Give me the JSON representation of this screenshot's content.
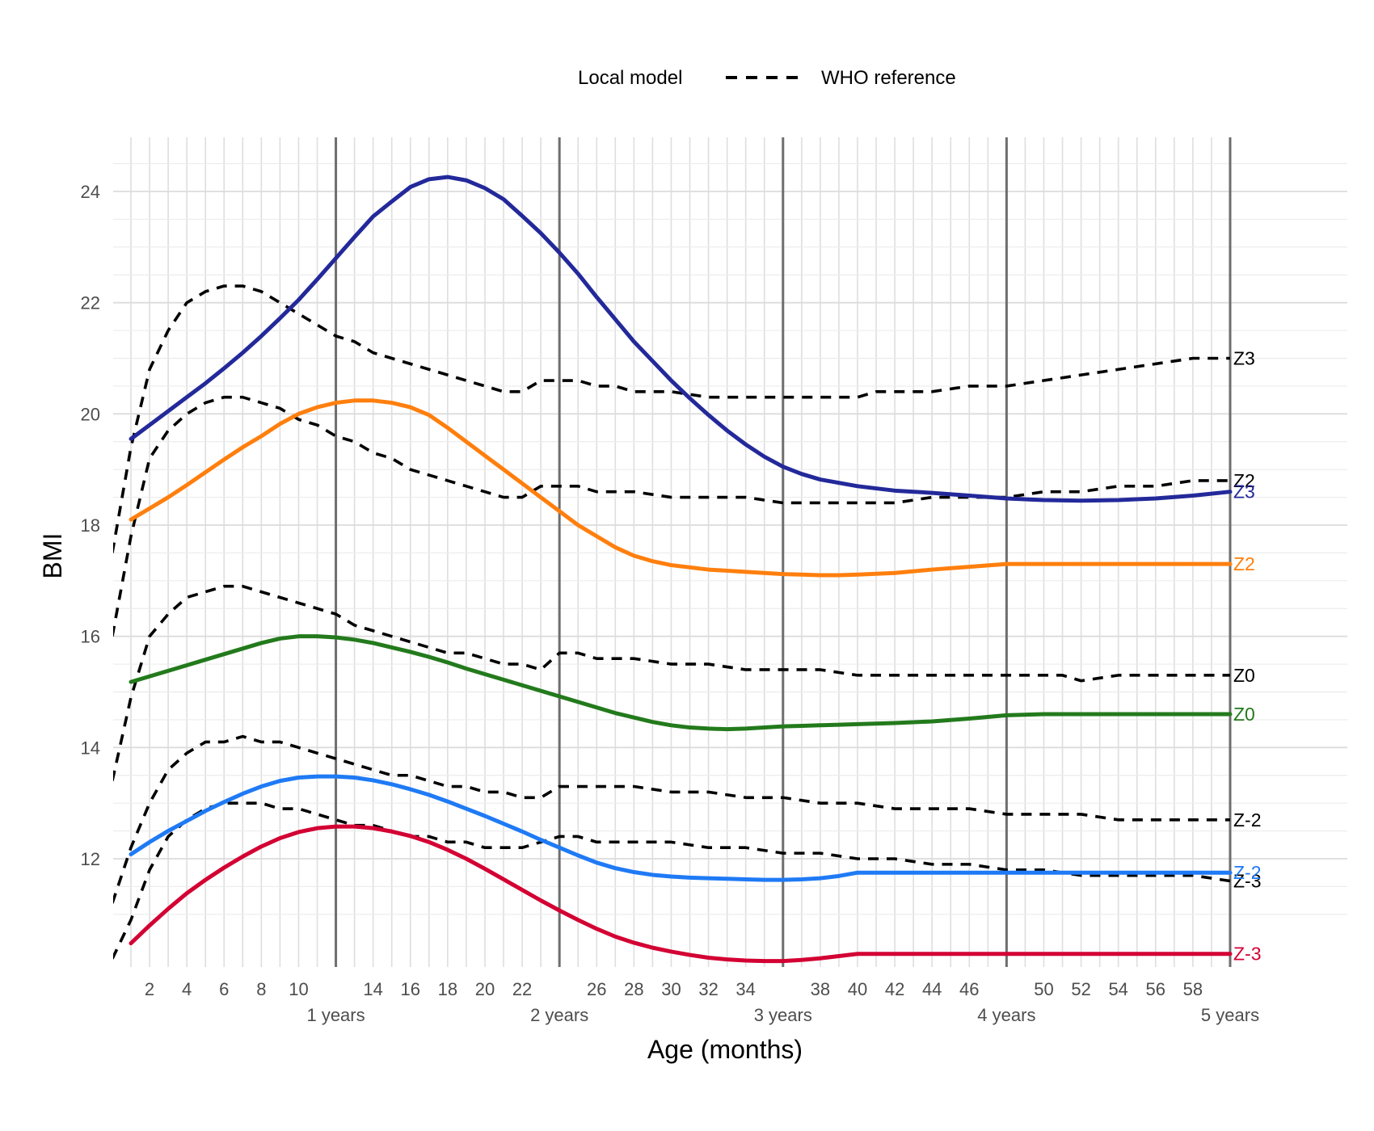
{
  "chart_data": {
    "type": "line",
    "title": "",
    "xlabel": "Age (months)",
    "ylabel": "BMI",
    "xlim": [
      0,
      60
    ],
    "ylim": [
      10.2,
      24.8
    ],
    "grid": true,
    "legend_position": "top",
    "legend": [
      {
        "label": "Local model",
        "style": "solid"
      },
      {
        "label": "WHO reference",
        "style": "dashed"
      }
    ],
    "x_ticks": [
      2,
      4,
      6,
      8,
      10,
      14,
      16,
      18,
      20,
      22,
      26,
      28,
      30,
      32,
      34,
      38,
      40,
      42,
      44,
      46,
      50,
      52,
      54,
      56,
      58
    ],
    "x_tick_labels": [
      "2",
      "4",
      "6",
      "8",
      "10",
      "14",
      "16",
      "18",
      "20",
      "22",
      "26",
      "28",
      "30",
      "32",
      "34",
      "38",
      "40",
      "42",
      "44",
      "46",
      "50",
      "52",
      "54",
      "56",
      "58"
    ],
    "year_ticks": [
      12,
      24,
      36,
      48,
      60
    ],
    "year_labels": [
      "1 years",
      "2 years",
      "3 years",
      "4 years",
      "5 years"
    ],
    "y_ticks": [
      12,
      14,
      16,
      18,
      20,
      22,
      24
    ],
    "y_tick_labels": [
      "12",
      "14",
      "16",
      "18",
      "20",
      "22",
      "24"
    ],
    "local_series": [
      {
        "name": "Z3",
        "color": "#23299a",
        "x": [
          1,
          2,
          3,
          4,
          5,
          6,
          7,
          8,
          9,
          10,
          11,
          12,
          13,
          14,
          15,
          16,
          17,
          18,
          19,
          20,
          21,
          22,
          23,
          24,
          25,
          26,
          27,
          28,
          29,
          30,
          31,
          32,
          33,
          34,
          35,
          36,
          37,
          38,
          39,
          40,
          41,
          42,
          44,
          46,
          48,
          50,
          52,
          54,
          56,
          58,
          60
        ],
        "y": [
          19.55,
          19.8,
          20.05,
          20.3,
          20.55,
          20.82,
          21.1,
          21.4,
          21.72,
          22.05,
          22.42,
          22.8,
          23.18,
          23.55,
          23.82,
          24.08,
          24.22,
          24.26,
          24.2,
          24.06,
          23.86,
          23.56,
          23.25,
          22.9,
          22.52,
          22.1,
          21.7,
          21.3,
          20.95,
          20.6,
          20.28,
          19.98,
          19.7,
          19.45,
          19.23,
          19.05,
          18.92,
          18.82,
          18.76,
          18.7,
          18.66,
          18.62,
          18.58,
          18.53,
          18.48,
          18.45,
          18.44,
          18.45,
          18.48,
          18.53,
          18.6
        ]
      },
      {
        "name": "Z2",
        "color": "#ff7f0e",
        "x": [
          1,
          2,
          3,
          4,
          5,
          6,
          7,
          8,
          9,
          10,
          11,
          12,
          13,
          14,
          15,
          16,
          17,
          18,
          19,
          20,
          21,
          22,
          23,
          24,
          25,
          26,
          27,
          28,
          29,
          30,
          31,
          32,
          33,
          34,
          35,
          36,
          37,
          38,
          39,
          40,
          42,
          44,
          46,
          48,
          50,
          52,
          54,
          56,
          58,
          60
        ],
        "y": [
          18.1,
          18.3,
          18.5,
          18.72,
          18.95,
          19.18,
          19.4,
          19.6,
          19.82,
          20.0,
          20.12,
          20.2,
          20.24,
          20.24,
          20.2,
          20.12,
          19.98,
          19.75,
          19.5,
          19.25,
          19.0,
          18.75,
          18.5,
          18.25,
          18.0,
          17.8,
          17.6,
          17.45,
          17.35,
          17.28,
          17.24,
          17.2,
          17.18,
          17.16,
          17.14,
          17.12,
          17.11,
          17.1,
          17.1,
          17.11,
          17.14,
          17.2,
          17.25,
          17.3,
          17.3,
          17.3,
          17.3,
          17.3,
          17.3,
          17.3
        ]
      },
      {
        "name": "Z0",
        "color": "#237a1c",
        "x": [
          1,
          2,
          3,
          4,
          5,
          6,
          7,
          8,
          9,
          10,
          11,
          12,
          13,
          14,
          15,
          16,
          17,
          18,
          19,
          20,
          21,
          22,
          23,
          24,
          25,
          26,
          27,
          28,
          29,
          30,
          31,
          32,
          33,
          34,
          35,
          36,
          37,
          38,
          39,
          40,
          42,
          44,
          46,
          48,
          50,
          52,
          54,
          56,
          58,
          60
        ],
        "y": [
          15.18,
          15.28,
          15.38,
          15.48,
          15.58,
          15.68,
          15.78,
          15.88,
          15.96,
          16.0,
          16.0,
          15.98,
          15.94,
          15.88,
          15.8,
          15.72,
          15.63,
          15.53,
          15.42,
          15.32,
          15.22,
          15.12,
          15.02,
          14.92,
          14.82,
          14.72,
          14.62,
          14.54,
          14.46,
          14.4,
          14.36,
          14.34,
          14.33,
          14.34,
          14.36,
          14.38,
          14.39,
          14.4,
          14.41,
          14.42,
          14.44,
          14.47,
          14.52,
          14.58,
          14.6,
          14.6,
          14.6,
          14.6,
          14.6,
          14.6
        ]
      },
      {
        "name": "Z-2",
        "color": "#1f7af5",
        "x": [
          1,
          2,
          3,
          4,
          5,
          6,
          7,
          8,
          9,
          10,
          11,
          12,
          13,
          14,
          15,
          16,
          17,
          18,
          19,
          20,
          21,
          22,
          23,
          24,
          25,
          26,
          27,
          28,
          29,
          30,
          31,
          32,
          33,
          34,
          35,
          36,
          37,
          38,
          39,
          40,
          42,
          44,
          46,
          48,
          50,
          52,
          54,
          56,
          58,
          60
        ],
        "y": [
          12.08,
          12.3,
          12.5,
          12.68,
          12.86,
          13.02,
          13.17,
          13.3,
          13.4,
          13.46,
          13.48,
          13.48,
          13.46,
          13.41,
          13.34,
          13.25,
          13.15,
          13.03,
          12.9,
          12.77,
          12.63,
          12.49,
          12.34,
          12.2,
          12.06,
          11.93,
          11.83,
          11.76,
          11.71,
          11.68,
          11.66,
          11.65,
          11.64,
          11.63,
          11.62,
          11.62,
          11.63,
          11.65,
          11.69,
          11.75,
          11.75,
          11.75,
          11.75,
          11.75,
          11.75,
          11.75,
          11.75,
          11.75,
          11.75,
          11.75
        ]
      },
      {
        "name": "Z-3",
        "color": "#d30033",
        "x": [
          1,
          2,
          3,
          4,
          5,
          6,
          7,
          8,
          9,
          10,
          11,
          12,
          13,
          14,
          15,
          16,
          17,
          18,
          19,
          20,
          21,
          22,
          23,
          24,
          25,
          26,
          27,
          28,
          29,
          30,
          31,
          32,
          33,
          34,
          35,
          36,
          37,
          38,
          39,
          40,
          42,
          44,
          46,
          48,
          50,
          52,
          54,
          56,
          58,
          60
        ],
        "y": [
          10.48,
          10.8,
          11.1,
          11.38,
          11.62,
          11.84,
          12.04,
          12.22,
          12.37,
          12.48,
          12.55,
          12.58,
          12.58,
          12.55,
          12.49,
          12.41,
          12.3,
          12.16,
          12.0,
          11.82,
          11.63,
          11.44,
          11.25,
          11.07,
          10.9,
          10.74,
          10.6,
          10.49,
          10.4,
          10.33,
          10.27,
          10.22,
          10.19,
          10.17,
          10.16,
          10.16,
          10.18,
          10.21,
          10.25,
          10.29,
          10.29,
          10.29,
          10.29,
          10.29,
          10.29,
          10.29,
          10.29,
          10.29,
          10.29,
          10.29
        ]
      }
    ],
    "who_series": [
      {
        "name": "Z3",
        "x": [
          0,
          1,
          2,
          3,
          4,
          5,
          6,
          7,
          8,
          9,
          10,
          11,
          12,
          13,
          14,
          15,
          16,
          17,
          18,
          19,
          20,
          21,
          22,
          23,
          24,
          25,
          26,
          27,
          28,
          30,
          32,
          34,
          36,
          38,
          40,
          41,
          42,
          44,
          46,
          48,
          50,
          52,
          54,
          56,
          58,
          60
        ],
        "y": [
          17.5,
          19.4,
          20.8,
          21.5,
          22.0,
          22.2,
          22.3,
          22.3,
          22.2,
          22.0,
          21.8,
          21.6,
          21.4,
          21.3,
          21.1,
          21.0,
          20.9,
          20.8,
          20.7,
          20.6,
          20.5,
          20.4,
          20.4,
          20.6,
          20.6,
          20.6,
          20.5,
          20.5,
          20.4,
          20.4,
          20.3,
          20.3,
          20.3,
          20.3,
          20.3,
          20.4,
          20.4,
          20.4,
          20.5,
          20.5,
          20.6,
          20.7,
          20.8,
          20.9,
          21.0,
          21.0
        ]
      },
      {
        "name": "Z2",
        "x": [
          0,
          1,
          2,
          3,
          4,
          5,
          6,
          7,
          8,
          9,
          10,
          11,
          12,
          13,
          14,
          15,
          16,
          17,
          18,
          19,
          20,
          21,
          22,
          23,
          24,
          25,
          26,
          27,
          28,
          30,
          32,
          34,
          36,
          38,
          40,
          42,
          44,
          46,
          48,
          50,
          52,
          54,
          56,
          58,
          60
        ],
        "y": [
          16.0,
          17.8,
          19.2,
          19.7,
          20.0,
          20.2,
          20.3,
          20.3,
          20.2,
          20.1,
          19.9,
          19.8,
          19.6,
          19.5,
          19.3,
          19.2,
          19.0,
          18.9,
          18.8,
          18.7,
          18.6,
          18.5,
          18.5,
          18.7,
          18.7,
          18.7,
          18.6,
          18.6,
          18.6,
          18.5,
          18.5,
          18.5,
          18.4,
          18.4,
          18.4,
          18.4,
          18.5,
          18.5,
          18.5,
          18.6,
          18.6,
          18.7,
          18.7,
          18.8,
          18.8
        ]
      },
      {
        "name": "Z0",
        "x": [
          0,
          1,
          2,
          3,
          4,
          5,
          6,
          7,
          8,
          9,
          10,
          11,
          12,
          13,
          14,
          15,
          16,
          17,
          18,
          19,
          20,
          21,
          22,
          23,
          24,
          25,
          26,
          28,
          30,
          32,
          34,
          36,
          38,
          40,
          42,
          44,
          46,
          48,
          50,
          51,
          52,
          54,
          56,
          58,
          60
        ],
        "y": [
          13.4,
          14.9,
          16.0,
          16.4,
          16.7,
          16.8,
          16.9,
          16.9,
          16.8,
          16.7,
          16.6,
          16.5,
          16.4,
          16.2,
          16.1,
          16.0,
          15.9,
          15.8,
          15.7,
          15.7,
          15.6,
          15.5,
          15.5,
          15.4,
          15.7,
          15.7,
          15.6,
          15.6,
          15.5,
          15.5,
          15.4,
          15.4,
          15.4,
          15.3,
          15.3,
          15.3,
          15.3,
          15.3,
          15.3,
          15.3,
          15.2,
          15.3,
          15.3,
          15.3,
          15.3
        ]
      },
      {
        "name": "Z-2",
        "x": [
          0,
          1,
          2,
          3,
          4,
          5,
          6,
          7,
          8,
          9,
          10,
          11,
          12,
          13,
          14,
          15,
          16,
          17,
          18,
          19,
          20,
          21,
          22,
          23,
          24,
          25,
          26,
          28,
          30,
          32,
          34,
          36,
          38,
          40,
          42,
          44,
          46,
          48,
          50,
          52,
          54,
          56,
          58,
          60
        ],
        "y": [
          11.2,
          12.2,
          13.0,
          13.6,
          13.9,
          14.1,
          14.1,
          14.2,
          14.1,
          14.1,
          14.0,
          13.9,
          13.8,
          13.7,
          13.6,
          13.5,
          13.5,
          13.4,
          13.3,
          13.3,
          13.2,
          13.2,
          13.1,
          13.1,
          13.3,
          13.3,
          13.3,
          13.3,
          13.2,
          13.2,
          13.1,
          13.1,
          13.0,
          13.0,
          12.9,
          12.9,
          12.9,
          12.8,
          12.8,
          12.8,
          12.7,
          12.7,
          12.7,
          12.7
        ]
      },
      {
        "name": "Z-3",
        "x": [
          0,
          1,
          2,
          3,
          4,
          5,
          6,
          7,
          8,
          9,
          10,
          11,
          12,
          13,
          14,
          15,
          16,
          17,
          18,
          19,
          20,
          21,
          22,
          23,
          24,
          25,
          26,
          28,
          30,
          32,
          34,
          36,
          38,
          40,
          42,
          44,
          46,
          48,
          50,
          52,
          54,
          56,
          58,
          60
        ],
        "y": [
          10.2,
          10.9,
          11.8,
          12.4,
          12.7,
          12.9,
          13.0,
          13.0,
          13.0,
          12.9,
          12.9,
          12.8,
          12.7,
          12.6,
          12.6,
          12.5,
          12.4,
          12.4,
          12.3,
          12.3,
          12.2,
          12.2,
          12.2,
          12.3,
          12.4,
          12.4,
          12.3,
          12.3,
          12.3,
          12.2,
          12.2,
          12.1,
          12.1,
          12.0,
          12.0,
          11.9,
          11.9,
          11.8,
          11.8,
          11.7,
          11.7,
          11.7,
          11.7,
          11.6
        ]
      }
    ],
    "local_end_labels": [
      "Z3",
      "Z2",
      "Z0",
      "Z-2",
      "Z-3"
    ],
    "who_end_labels": [
      "Z3",
      "Z2",
      "Z0",
      "Z-2",
      "Z-3"
    ]
  }
}
